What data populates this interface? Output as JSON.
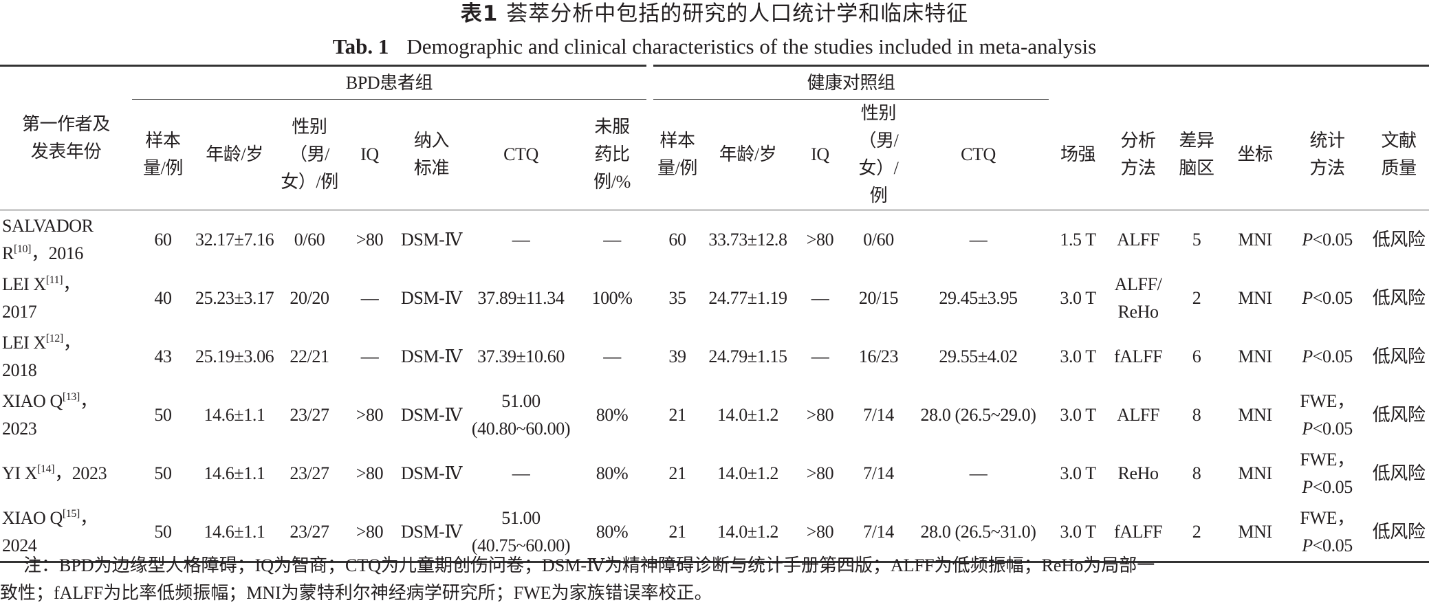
{
  "title": {
    "cn_label": "表1",
    "cn_text": "荟萃分析中包括的研究的人口统计学和临床特征",
    "en_label": "Tab. 1",
    "en_text": "Demographic and clinical characteristics of the studies included in meta-analysis"
  },
  "header": {
    "author": "第一作者及\n发表年份",
    "bpd_group": "BPD患者组",
    "hc_group": "健康对照组",
    "bpd_cols": [
      "样本\n量/例",
      "年龄/岁",
      "性别\n（男/\n女）/例",
      "IQ",
      "纳入\n标准",
      "CTQ",
      "未服\n药比\n例/%"
    ],
    "hc_cols": [
      "样本\n量/例",
      "年龄/岁",
      "IQ",
      "性别\n（男/\n女）/例",
      "CTQ"
    ],
    "other_cols": [
      "场强",
      "分析\n方法",
      "差异\n脑区",
      "坐标",
      "统计\n方法",
      "文献\n质量"
    ]
  },
  "rows": [
    {
      "author": "SALVADOR\nR",
      "ref": "[10]",
      "year": "，2016",
      "bpd": [
        "60",
        "32.17±7.16",
        "0/60",
        ">80",
        "DSM-Ⅳ",
        "—",
        "—"
      ],
      "hc": [
        "60",
        "33.73±12.8",
        ">80",
        "0/60",
        "—"
      ],
      "field": "1.5 T",
      "method": "ALFF",
      "regions": "5",
      "coord": "MNI",
      "stat_prefix": "",
      "stat_p": "P",
      "stat_rest": "<0.05",
      "quality": "低风险"
    },
    {
      "author": "LEI X",
      "ref": "[11]",
      "year": "，\n2017",
      "bpd": [
        "40",
        "25.23±3.17",
        "20/20",
        "—",
        "DSM-Ⅳ",
        "37.89±11.34",
        "100%"
      ],
      "hc": [
        "35",
        "24.77±1.19",
        "—",
        "20/15",
        "29.45±3.95"
      ],
      "field": "3.0 T",
      "method": "ALFF/\nReHo",
      "regions": "2",
      "coord": "MNI",
      "stat_prefix": "",
      "stat_p": "P",
      "stat_rest": "<0.05",
      "quality": "低风险"
    },
    {
      "author": "LEI X",
      "ref": "[12]",
      "year": "，\n2018",
      "bpd": [
        "43",
        "25.19±3.06",
        "22/21",
        "—",
        "DSM-Ⅳ",
        "37.39±10.60",
        "—"
      ],
      "hc": [
        "39",
        "24.79±1.15",
        "—",
        "16/23",
        "29.55±4.02"
      ],
      "field": "3.0 T",
      "method": "fALFF",
      "regions": "6",
      "coord": "MNI",
      "stat_prefix": "",
      "stat_p": "P",
      "stat_rest": "<0.05",
      "quality": "低风险"
    },
    {
      "author": "XIAO Q",
      "ref": "[13]",
      "year": "，\n2023",
      "bpd": [
        "50",
        "14.6±1.1",
        "23/27",
        ">80",
        "DSM-Ⅳ",
        "51.00\n(40.80~60.00)",
        "80%"
      ],
      "hc": [
        "21",
        "14.0±1.2",
        ">80",
        "7/14",
        "28.0 (26.5~29.0)"
      ],
      "field": "3.0 T",
      "method": "ALFF",
      "regions": "8",
      "coord": "MNI",
      "stat_prefix": "FWE，\n",
      "stat_p": "P",
      "stat_rest": "<0.05",
      "quality": "低风险"
    },
    {
      "author": "YI X",
      "ref": "[14]",
      "year": "，2023",
      "bpd": [
        "50",
        "14.6±1.1",
        "23/27",
        ">80",
        "DSM-Ⅳ",
        "—",
        "80%"
      ],
      "hc": [
        "21",
        "14.0±1.2",
        ">80",
        "7/14",
        "—"
      ],
      "field": "3.0 T",
      "method": "ReHo",
      "regions": "8",
      "coord": "MNI",
      "stat_prefix": "FWE，\n",
      "stat_p": "P",
      "stat_rest": "<0.05",
      "quality": "低风险"
    },
    {
      "author": "XIAO Q",
      "ref": "[15]",
      "year": "，\n2024",
      "bpd": [
        "50",
        "14.6±1.1",
        "23/27",
        ">80",
        "DSM-Ⅳ",
        "51.00\n(40.75~60.00)",
        "80%"
      ],
      "hc": [
        "21",
        "14.0±1.2",
        ">80",
        "7/14",
        "28.0 (26.5~31.0)"
      ],
      "field": "3.0 T",
      "method": "fALFF",
      "regions": "2",
      "coord": "MNI",
      "stat_prefix": "FWE，\n",
      "stat_p": "P",
      "stat_rest": "<0.05",
      "quality": "低风险"
    }
  ],
  "note": {
    "line1": "注：BPD为边缘型人格障碍；IQ为智商；CTQ为儿童期创伤问卷；DSM-Ⅳ为精神障碍诊断与统计手册第四版；ALFF为低频振幅；ReHo为局部一",
    "line2": "致性；fALFF为比率低频振幅；MNI为蒙特利尔神经病学研究所；FWE为家族错误率校正。"
  }
}
